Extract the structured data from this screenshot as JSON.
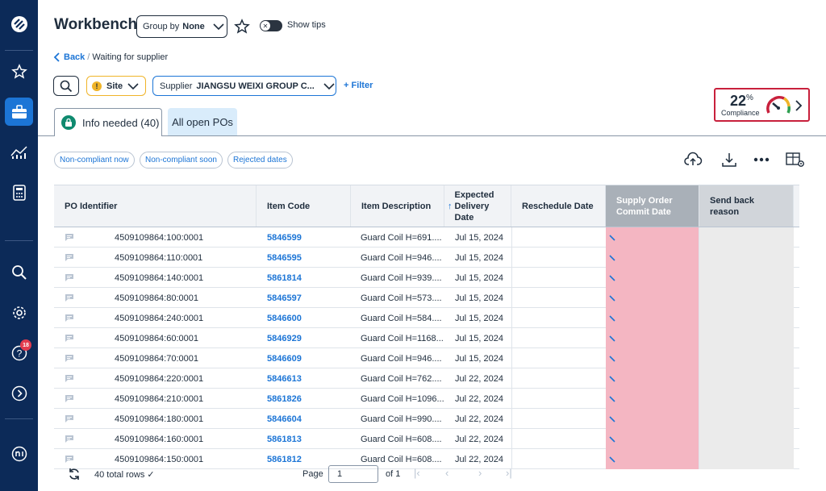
{
  "header": {
    "title": "Workbench",
    "group_by_label": "Group by",
    "group_by_value": "None",
    "show_tips": "Show tips"
  },
  "breadcrumb": {
    "back": "Back",
    "separator": "/",
    "current": "Waiting for supplier"
  },
  "filters": {
    "site_label": "Site",
    "supplier_label": "Supplier",
    "supplier_value": "JIANGSU WEIXI GROUP C...",
    "add_filter": "+ Filter"
  },
  "compliance": {
    "value": "22",
    "unit": "%",
    "label": "Compliance",
    "accent": "#c8203c"
  },
  "tabs": [
    {
      "label": "Info needed (40)",
      "active": true
    },
    {
      "label": "All open POs",
      "active": false
    }
  ],
  "quick_filters": [
    "Non-compliant now",
    "Non-compliant soon",
    "Rejected dates"
  ],
  "table": {
    "columns": [
      "PO Identifier",
      "Item Code",
      "Item Description",
      "Expected Delivery Date",
      "Reschedule Date",
      "Supply Order Commit Date",
      "Send back reason"
    ],
    "sort_indicator": "↑",
    "rows": [
      {
        "po": "4509109864:100:0001",
        "item": "5846599",
        "desc": "Guard Coil H=691....",
        "date": "Jul 15, 2024"
      },
      {
        "po": "4509109864:110:0001",
        "item": "5846595",
        "desc": "Guard Coil H=946....",
        "date": "Jul 15, 2024"
      },
      {
        "po": "4509109864:140:0001",
        "item": "5861814",
        "desc": "Guard Coil H=939....",
        "date": "Jul 15, 2024"
      },
      {
        "po": "4509109864:80:0001",
        "item": "5846597",
        "desc": "Guard Coil H=573....",
        "date": "Jul 15, 2024"
      },
      {
        "po": "4509109864:240:0001",
        "item": "5846600",
        "desc": "Guard Coil H=584....",
        "date": "Jul 15, 2024"
      },
      {
        "po": "4509109864:60:0001",
        "item": "5846929",
        "desc": "Guard Coil H=1168...",
        "date": "Jul 15, 2024"
      },
      {
        "po": "4509109864:70:0001",
        "item": "5846609",
        "desc": "Guard Coil H=946....",
        "date": "Jul 15, 2024"
      },
      {
        "po": "4509109864:220:0001",
        "item": "5846613",
        "desc": "Guard Coil H=762....",
        "date": "Jul 22, 2024"
      },
      {
        "po": "4509109864:210:0001",
        "item": "5861826",
        "desc": "Guard Coil H=1096...",
        "date": "Jul 22, 2024"
      },
      {
        "po": "4509109864:180:0001",
        "item": "5846604",
        "desc": "Guard Coil H=990....",
        "date": "Jul 22, 2024"
      },
      {
        "po": "4509109864:160:0001",
        "item": "5861813",
        "desc": "Guard Coil H=608....",
        "date": "Jul 22, 2024"
      },
      {
        "po": "4509109864:150:0001",
        "item": "5861812",
        "desc": "Guard Coil H=608....",
        "date": "Jul 22, 2024"
      }
    ]
  },
  "footer": {
    "total_rows": "40 total rows ✓",
    "page_label": "Page",
    "page_value": "1",
    "of_pages": "of 1"
  },
  "nav": {
    "help_badge": "18"
  }
}
